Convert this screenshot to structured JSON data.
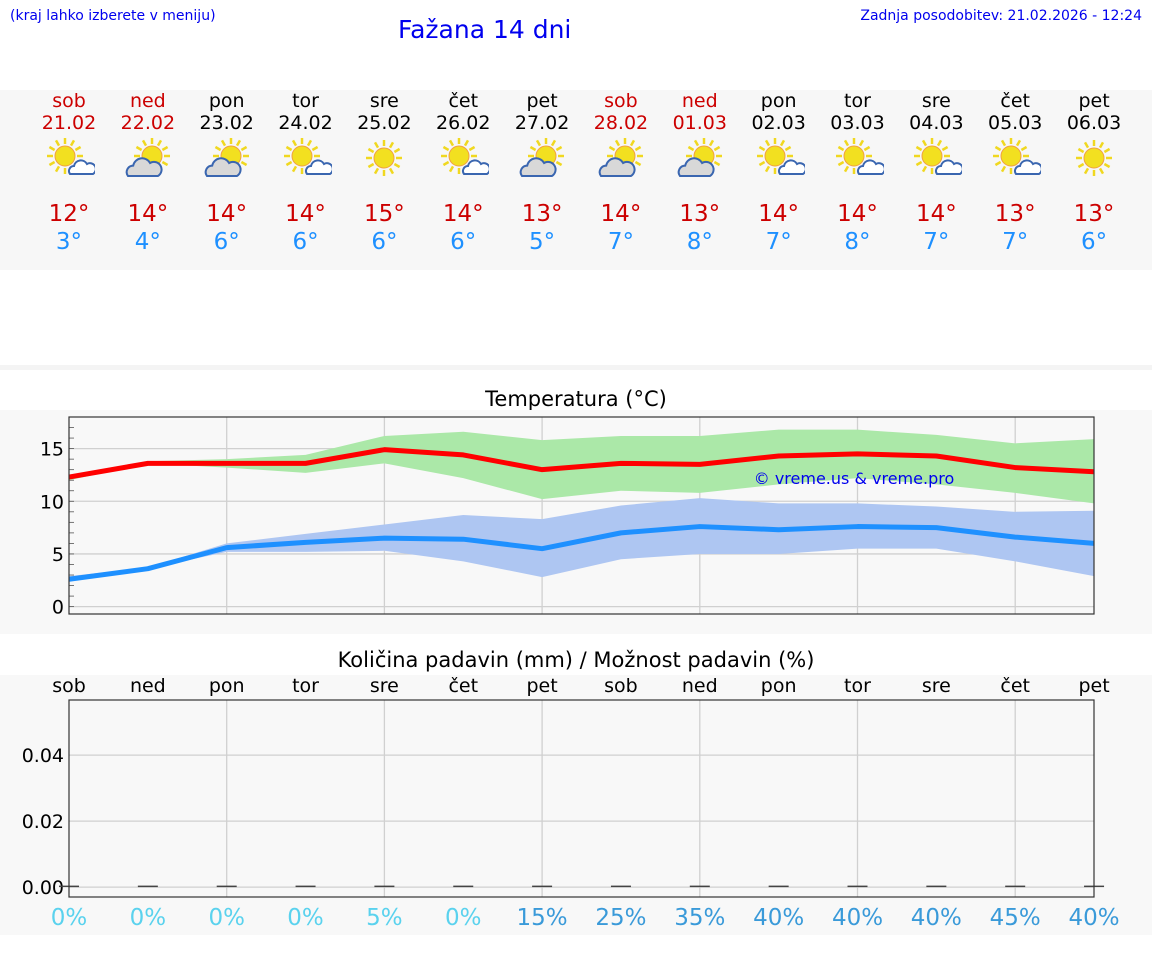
{
  "header": {
    "hint": "(kraj lahko izberete v meniju)",
    "title": "Fažana 14 dni",
    "updated": "Zadnja posodobitev: 21.02.2026 - 12:24"
  },
  "days": [
    {
      "name": "sob",
      "date": "21.02",
      "weekend": true,
      "icon": "sun-small-cloud",
      "max": "12°",
      "min": "3°"
    },
    {
      "name": "ned",
      "date": "22.02",
      "weekend": true,
      "icon": "cloud-sun",
      "max": "14°",
      "min": "4°"
    },
    {
      "name": "pon",
      "date": "23.02",
      "weekend": false,
      "icon": "cloud-sun",
      "max": "14°",
      "min": "6°"
    },
    {
      "name": "tor",
      "date": "24.02",
      "weekend": false,
      "icon": "sun-small-cloud",
      "max": "14°",
      "min": "6°"
    },
    {
      "name": "sre",
      "date": "25.02",
      "weekend": false,
      "icon": "sun",
      "max": "15°",
      "min": "6°"
    },
    {
      "name": "čet",
      "date": "26.02",
      "weekend": false,
      "icon": "sun-small-cloud",
      "max": "14°",
      "min": "6°"
    },
    {
      "name": "pet",
      "date": "27.02",
      "weekend": false,
      "icon": "cloud-sun",
      "max": "13°",
      "min": "5°"
    },
    {
      "name": "sob",
      "date": "28.02",
      "weekend": true,
      "icon": "cloud-sun",
      "max": "14°",
      "min": "7°"
    },
    {
      "name": "ned",
      "date": "01.03",
      "weekend": true,
      "icon": "cloud-sun",
      "max": "13°",
      "min": "8°"
    },
    {
      "name": "pon",
      "date": "02.03",
      "weekend": false,
      "icon": "sun-small-cloud",
      "max": "14°",
      "min": "7°"
    },
    {
      "name": "tor",
      "date": "03.03",
      "weekend": false,
      "icon": "sun-small-cloud",
      "max": "14°",
      "min": "8°"
    },
    {
      "name": "sre",
      "date": "04.03",
      "weekend": false,
      "icon": "sun-small-cloud",
      "max": "14°",
      "min": "7°"
    },
    {
      "name": "čet",
      "date": "05.03",
      "weekend": false,
      "icon": "sun-small-cloud",
      "max": "13°",
      "min": "7°"
    },
    {
      "name": "pet",
      "date": "06.03",
      "weekend": false,
      "icon": "sun",
      "max": "13°",
      "min": "6°"
    }
  ],
  "colors": {
    "max": "#ff0000",
    "min": "#1e90ff",
    "maxBand": "#abe8a8",
    "minBand": "#aec6f2",
    "pctLow": "#5ad2ee",
    "pctHigh": "#3a9ad9"
  },
  "chart_data": [
    {
      "type": "line",
      "title": "Temperatura (°C)",
      "ylim": [
        -0.7,
        18
      ],
      "yticks": [
        0,
        5,
        10,
        15
      ],
      "watermark": "© vreme.us & vreme.pro",
      "series": [
        {
          "name": "max",
          "values": [
            12.3,
            13.6,
            13.6,
            13.6,
            14.9,
            14.4,
            13.0,
            13.6,
            13.5,
            14.3,
            14.5,
            14.3,
            13.2,
            12.8
          ],
          "band_upper": [
            12.3,
            13.8,
            14.0,
            14.4,
            16.2,
            16.6,
            15.8,
            16.2,
            16.2,
            16.8,
            16.8,
            16.3,
            15.5,
            15.9
          ],
          "band_lower": [
            12.0,
            13.6,
            13.2,
            12.7,
            13.6,
            12.2,
            10.2,
            11.0,
            10.8,
            11.6,
            12.2,
            11.6,
            10.8,
            9.8
          ]
        },
        {
          "name": "min",
          "values": [
            2.6,
            3.6,
            5.6,
            6.1,
            6.5,
            6.4,
            5.5,
            7.0,
            7.6,
            7.3,
            7.6,
            7.5,
            6.6,
            6.0
          ],
          "band_upper": [
            2.9,
            3.7,
            6.0,
            6.9,
            7.8,
            8.7,
            8.3,
            9.6,
            10.3,
            9.8,
            9.8,
            9.5,
            9.0,
            9.1
          ],
          "band_lower": [
            2.4,
            3.6,
            5.2,
            5.2,
            5.3,
            4.3,
            2.8,
            4.5,
            5.0,
            5.0,
            5.5,
            5.5,
            4.3,
            2.9
          ]
        }
      ]
    },
    {
      "type": "bar",
      "title": "Količina padavin (mm) / Možnost padavin (%)",
      "ylim": [
        -0.003,
        0.0567
      ],
      "yticks": [
        "0.00",
        "0.02",
        "0.04"
      ],
      "categories": [
        "sob",
        "ned",
        "pon",
        "tor",
        "sre",
        "čet",
        "pet",
        "sob",
        "ned",
        "pon",
        "tor",
        "sre",
        "čet",
        "pet"
      ],
      "values": [
        0,
        0,
        0,
        0,
        0,
        0,
        0,
        0,
        0,
        0,
        0,
        0,
        0,
        0
      ],
      "probability": [
        "0%",
        "0%",
        "0%",
        "0%",
        "5%",
        "0%",
        "15%",
        "25%",
        "35%",
        "40%",
        "40%",
        "40%",
        "45%",
        "40%"
      ],
      "probability_values": [
        0,
        0,
        0,
        0,
        5,
        0,
        15,
        25,
        35,
        40,
        40,
        40,
        45,
        40
      ]
    }
  ]
}
